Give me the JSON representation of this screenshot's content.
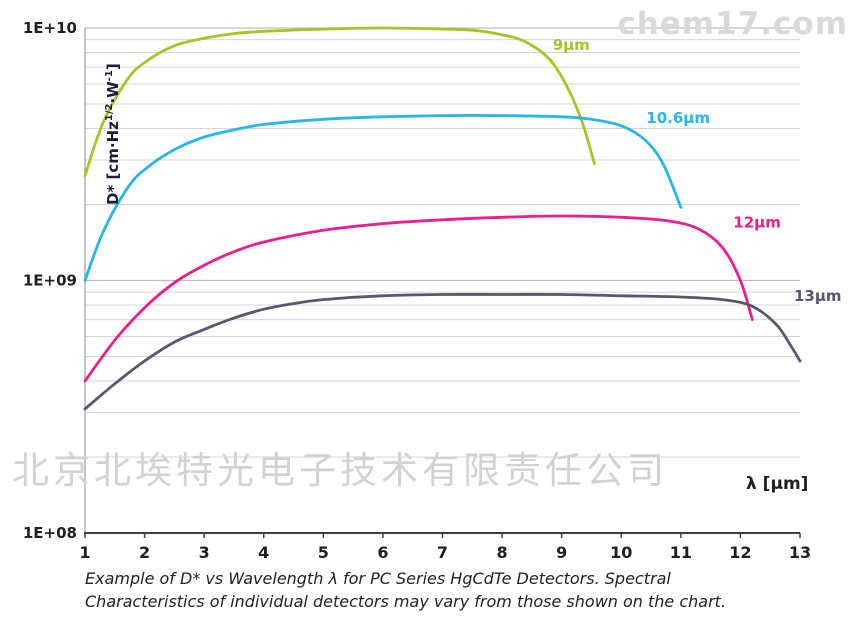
{
  "watermarks": {
    "top_right": "chem17.com",
    "center": "北京北埃特光电子技术有限责任公司"
  },
  "caption": "Example of D* vs Wavelength λ for PC Series HgCdTe Detectors. Spectral Characteristics of individual detectors may vary from those shown on the chart.",
  "chart_data": {
    "type": "line",
    "title": "",
    "xlabel": "λ [μm]",
    "ylabel_parts": {
      "p1": "D* [cm·Hz",
      "sup1": "1/2",
      "p2": "·W",
      "sup2": "-1",
      "p3": "]"
    },
    "xlim": [
      1,
      13
    ],
    "ylim": [
      100000000.0,
      10000000000.0
    ],
    "y_scale": "log",
    "grid": "horizontal-log-minor",
    "legend_position": "inline-labels",
    "x_ticks": [
      1,
      2,
      3,
      4,
      5,
      6,
      7,
      8,
      9,
      10,
      11,
      12,
      13
    ],
    "y_ticks": [
      {
        "label": "1E+10",
        "value": 10000000000.0
      },
      {
        "label": "1E+09",
        "value": 1000000000.0
      },
      {
        "label": "1E+08",
        "value": 100000000.0
      }
    ],
    "colors": {
      "grid_minor": "#d4d4d4",
      "grid_major": "#bdbdbd",
      "axis": "#3f3f3f",
      "left_axis": "#8a8a8a",
      "tick_text": "#1f1f1f"
    },
    "series": [
      {
        "name": "9μm",
        "color": "#a3c626",
        "label_pos": [
          8.85,
          8200000000.0
        ],
        "points": [
          [
            1,
            2600000000.0
          ],
          [
            1.3,
            4200000000.0
          ],
          [
            1.7,
            6200000000.0
          ],
          [
            2,
            7300000000.0
          ],
          [
            2.5,
            8500000000.0
          ],
          [
            3,
            9100000000.0
          ],
          [
            3.5,
            9500000000.0
          ],
          [
            4,
            9700000000.0
          ],
          [
            5,
            9900000000.0
          ],
          [
            6,
            10000000000.0
          ],
          [
            7,
            9900000000.0
          ],
          [
            7.5,
            9800000000.0
          ],
          [
            8,
            9400000000.0
          ],
          [
            8.4,
            8800000000.0
          ],
          [
            8.8,
            7500000000.0
          ],
          [
            9.1,
            5800000000.0
          ],
          [
            9.35,
            4200000000.0
          ],
          [
            9.55,
            2900000000.0
          ]
        ]
      },
      {
        "name": "10.6μm",
        "color": "#27b6e7",
        "label_pos": [
          10.42,
          4200000000.0
        ],
        "points": [
          [
            1,
            1000000000.0
          ],
          [
            1.3,
            1550000000.0
          ],
          [
            1.7,
            2300000000.0
          ],
          [
            2,
            2750000000.0
          ],
          [
            2.5,
            3300000000.0
          ],
          [
            3,
            3700000000.0
          ],
          [
            3.5,
            3950000000.0
          ],
          [
            4,
            4150000000.0
          ],
          [
            5,
            4350000000.0
          ],
          [
            6,
            4450000000.0
          ],
          [
            7,
            4500000000.0
          ],
          [
            8,
            4500000000.0
          ],
          [
            9,
            4450000000.0
          ],
          [
            9.5,
            4350000000.0
          ],
          [
            10,
            4100000000.0
          ],
          [
            10.4,
            3600000000.0
          ],
          [
            10.7,
            2900000000.0
          ],
          [
            11,
            1950000000.0
          ]
        ]
      },
      {
        "name": "12μm",
        "color": "#ec1e8c",
        "label_pos": [
          11.88,
          1620000000.0
        ],
        "points": [
          [
            1,
            400000000.0
          ],
          [
            1.5,
            580000000.0
          ],
          [
            2,
            780000000.0
          ],
          [
            2.5,
            980000000.0
          ],
          [
            3,
            1150000000.0
          ],
          [
            3.5,
            1300000000.0
          ],
          [
            4,
            1420000000.0
          ],
          [
            5,
            1580000000.0
          ],
          [
            6,
            1680000000.0
          ],
          [
            7,
            1740000000.0
          ],
          [
            8,
            1780000000.0
          ],
          [
            9,
            1800000000.0
          ],
          [
            10,
            1780000000.0
          ],
          [
            10.8,
            1720000000.0
          ],
          [
            11.3,
            1600000000.0
          ],
          [
            11.7,
            1350000000.0
          ],
          [
            12,
            1000000000.0
          ],
          [
            12.2,
            700000000.0
          ]
        ]
      },
      {
        "name": "13μm",
        "color": "#5b5571",
        "label_pos": [
          12.9,
          830000000.0
        ],
        "points": [
          [
            1,
            310000000.0
          ],
          [
            1.5,
            390000000.0
          ],
          [
            2,
            480000000.0
          ],
          [
            2.5,
            570000000.0
          ],
          [
            3,
            640000000.0
          ],
          [
            3.5,
            710000000.0
          ],
          [
            4,
            770000000.0
          ],
          [
            4.5,
            810000000.0
          ],
          [
            5,
            840000000.0
          ],
          [
            6,
            870000000.0
          ],
          [
            7,
            880000000.0
          ],
          [
            8,
            880000000.0
          ],
          [
            9,
            880000000.0
          ],
          [
            10,
            870000000.0
          ],
          [
            11,
            860000000.0
          ],
          [
            11.7,
            840000000.0
          ],
          [
            12.2,
            790000000.0
          ],
          [
            12.6,
            670000000.0
          ],
          [
            12.85,
            550000000.0
          ],
          [
            13,
            480000000.0
          ]
        ]
      }
    ]
  }
}
